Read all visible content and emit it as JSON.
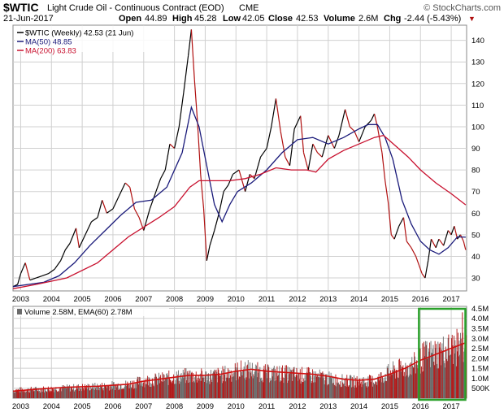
{
  "header": {
    "symbol": "$WTIC",
    "description": "Light Crude Oil - Continuous Contract (EOD)",
    "exchange": "CME",
    "brand": "© StockCharts.com",
    "date": "21-Jun-2017",
    "open_label": "Open",
    "open_value": "44.89",
    "high_label": "High",
    "high_value": "45.28",
    "low_label": "Low",
    "low_value": "42.05",
    "close_label": "Close",
    "close_value": "42.53",
    "volume_label": "Volume",
    "volume_value": "2.6M",
    "chg_label": "Chg",
    "chg_value": "-2.44 (-5.43%)",
    "chg_arrow": "▼"
  },
  "colors": {
    "price": "#000000",
    "price_down": "#b01010",
    "ma50": "#1a1a7a",
    "ma200": "#c8102e",
    "grid": "#d0d0d0",
    "volume_bar": "#6b6b6b",
    "volume_bar_red": "#b01818",
    "volume_ema": "#d01010",
    "highlight": "#2aa02a"
  },
  "chart_data": [
    {
      "type": "line",
      "title": "$WTIC Light Crude Oil - Continuous Contract (EOD) CME",
      "legend_position": "top-left",
      "legend": [
        {
          "key": "price",
          "label": "$WTIC (Weekly) 42.53 (21 Jun)"
        },
        {
          "key": "ma50",
          "label": "MA(50) 48.85"
        },
        {
          "key": "ma200",
          "label": "MA(200) 63.83"
        }
      ],
      "x_ticks": [
        "2003",
        "2004",
        "2005",
        "2006",
        "2007",
        "2008",
        "2009",
        "2010",
        "2011",
        "2012",
        "2013",
        "2014",
        "2015",
        "2016",
        "2017"
      ],
      "x_range": [
        2002.75,
        2017.5
      ],
      "y_ticks": [
        30,
        40,
        50,
        60,
        70,
        80,
        90,
        100,
        110,
        120,
        130,
        140
      ],
      "y_range": [
        24,
        147
      ],
      "grid": true,
      "series": [
        {
          "name": "$WTIC (Weekly)",
          "key": "price",
          "x": [
            2002.75,
            2002.9,
            2003.0,
            2003.15,
            2003.3,
            2003.5,
            2003.7,
            2003.9,
            2004.1,
            2004.3,
            2004.45,
            2004.6,
            2004.8,
            2004.9,
            2005.1,
            2005.3,
            2005.5,
            2005.65,
            2005.8,
            2006.0,
            2006.2,
            2006.4,
            2006.55,
            2006.7,
            2006.85,
            2007.0,
            2007.2,
            2007.4,
            2007.55,
            2007.7,
            2007.85,
            2008.0,
            2008.15,
            2008.3,
            2008.45,
            2008.55,
            2008.65,
            2008.75,
            2008.85,
            2008.95,
            2009.05,
            2009.15,
            2009.3,
            2009.45,
            2009.6,
            2009.75,
            2009.9,
            2010.1,
            2010.3,
            2010.45,
            2010.6,
            2010.8,
            2011.0,
            2011.15,
            2011.3,
            2011.45,
            2011.6,
            2011.75,
            2011.9,
            2012.1,
            2012.2,
            2012.35,
            2012.5,
            2012.65,
            2012.8,
            2013.0,
            2013.2,
            2013.35,
            2013.55,
            2013.7,
            2013.85,
            2014.0,
            2014.2,
            2014.4,
            2014.5,
            2014.6,
            2014.75,
            2014.85,
            2014.95,
            2015.05,
            2015.15,
            2015.3,
            2015.45,
            2015.55,
            2015.7,
            2015.85,
            2015.95,
            2016.05,
            2016.15,
            2016.25,
            2016.35,
            2016.5,
            2016.6,
            2016.75,
            2016.9,
            2017.0,
            2017.1,
            2017.2,
            2017.3,
            2017.4,
            2017.47
          ],
          "y": [
            26,
            27,
            32,
            37,
            29,
            30,
            31,
            32,
            34,
            38,
            43,
            46,
            53,
            44,
            50,
            56,
            58,
            66,
            60,
            62,
            68,
            74,
            72,
            62,
            58,
            52,
            62,
            70,
            76,
            80,
            92,
            90,
            100,
            116,
            133,
            145,
            122,
            102,
            78,
            62,
            38,
            45,
            52,
            60,
            70,
            73,
            78,
            80,
            70,
            78,
            76,
            86,
            90,
            100,
            113,
            98,
            86,
            82,
            99,
            105,
            88,
            80,
            92,
            88,
            86,
            96,
            90,
            96,
            108,
            100,
            98,
            93,
            100,
            103,
            106,
            100,
            88,
            75,
            65,
            50,
            48,
            54,
            58,
            47,
            44,
            40,
            36,
            32,
            30,
            38,
            48,
            44,
            48,
            45,
            52,
            50,
            54,
            48,
            50,
            47,
            43
          ]
        },
        {
          "name": "MA(50)",
          "key": "ma50",
          "x": [
            2002.75,
            2003.25,
            2003.75,
            2004.25,
            2004.75,
            2005.25,
            2005.75,
            2006.25,
            2006.75,
            2007.25,
            2007.75,
            2008.25,
            2008.55,
            2008.8,
            2009.05,
            2009.3,
            2009.55,
            2009.8,
            2010.05,
            2010.5,
            2011.0,
            2011.5,
            2012.0,
            2012.5,
            2013.0,
            2013.5,
            2014.0,
            2014.3,
            2014.6,
            2014.85,
            2015.1,
            2015.4,
            2015.7,
            2016.0,
            2016.3,
            2016.6,
            2016.9,
            2017.2,
            2017.47
          ],
          "y": [
            26,
            27,
            28,
            31,
            37,
            45,
            52,
            59,
            65,
            66,
            72,
            88,
            109,
            100,
            82,
            64,
            56,
            64,
            70,
            74,
            80,
            88,
            94,
            95,
            92,
            95,
            99,
            101,
            101,
            95,
            85,
            66,
            55,
            47,
            43,
            41,
            44,
            49,
            48.85
          ]
        },
        {
          "name": "MA(200)",
          "key": "ma200",
          "x": [
            2002.75,
            2003.5,
            2004.5,
            2005.5,
            2006.5,
            2007.5,
            2008.0,
            2008.5,
            2008.8,
            2009.3,
            2009.8,
            2010.3,
            2010.8,
            2011.3,
            2011.8,
            2012.3,
            2012.6,
            2013.0,
            2013.5,
            2014.0,
            2014.5,
            2014.8,
            2015.2,
            2015.6,
            2016.0,
            2016.5,
            2017.0,
            2017.47
          ],
          "y": [
            25,
            27,
            30,
            37,
            49,
            58,
            63,
            72,
            75,
            75,
            75,
            76,
            78,
            81,
            80,
            80,
            79,
            85,
            89,
            92,
            95,
            96,
            91,
            86,
            80,
            74,
            69,
            63.83
          ]
        }
      ]
    },
    {
      "type": "bar",
      "title": "Volume 2.58M, EMA(60) 2.78M",
      "legend_position": "top-left",
      "legend": [
        {
          "key": "volume",
          "label": "Volume 2.58M, EMA(60) 2.78M"
        }
      ],
      "x_ticks": [
        "2003",
        "2004",
        "2005",
        "2006",
        "2007",
        "2008",
        "2009",
        "2010",
        "2011",
        "2012",
        "2013",
        "2014",
        "2015",
        "2016",
        "2017"
      ],
      "x_range": [
        2002.75,
        2017.5
      ],
      "y_ticks": [
        "500K",
        "1.0M",
        "1.5M",
        "2.0M",
        "2.5M",
        "3.0M",
        "3.5M",
        "4.0M",
        "4.5M"
      ],
      "y_tick_values": [
        0.5,
        1.0,
        1.5,
        2.0,
        2.5,
        3.0,
        3.5,
        4.0,
        4.5
      ],
      "y_range": [
        0,
        4.6
      ],
      "volume_envelope": {
        "x": [
          2002.75,
          2003.5,
          2004.5,
          2005.5,
          2006.5,
          2007.0,
          2007.5,
          2008.0,
          2008.5,
          2009.0,
          2009.5,
          2010.0,
          2010.3,
          2010.6,
          2011.0,
          2011.5,
          2012.0,
          2012.5,
          2013.0,
          2013.5,
          2014.0,
          2014.5,
          2015.0,
          2015.5,
          2015.9,
          2016.1,
          2016.5,
          2017.0,
          2017.47
        ],
        "y": [
          0.55,
          0.6,
          0.7,
          0.8,
          0.95,
          1.2,
          1.3,
          1.45,
          1.55,
          1.5,
          1.6,
          1.85,
          2.0,
          1.85,
          1.7,
          1.7,
          1.6,
          1.55,
          1.35,
          1.2,
          1.15,
          1.2,
          1.8,
          2.1,
          2.4,
          2.9,
          3.1,
          3.4,
          3.6
        ]
      },
      "series": [
        {
          "name": "EMA(60)",
          "key": "ema",
          "x": [
            2002.75,
            2003.5,
            2004.5,
            2005.5,
            2006.5,
            2007.0,
            2007.5,
            2008.0,
            2008.5,
            2009.0,
            2009.5,
            2010.0,
            2010.5,
            2011.0,
            2011.5,
            2012.0,
            2012.5,
            2013.0,
            2013.5,
            2014.0,
            2014.5,
            2015.0,
            2015.5,
            2016.0,
            2016.5,
            2017.0,
            2017.47
          ],
          "y": [
            0.35,
            0.45,
            0.55,
            0.6,
            0.7,
            0.85,
            0.95,
            1.05,
            1.15,
            1.15,
            1.2,
            1.35,
            1.45,
            1.35,
            1.3,
            1.25,
            1.2,
            1.1,
            0.95,
            0.9,
            0.95,
            1.2,
            1.5,
            1.9,
            2.2,
            2.5,
            2.78
          ]
        }
      ],
      "annotation": "green box highlighting 2016–2017 volume"
    }
  ]
}
